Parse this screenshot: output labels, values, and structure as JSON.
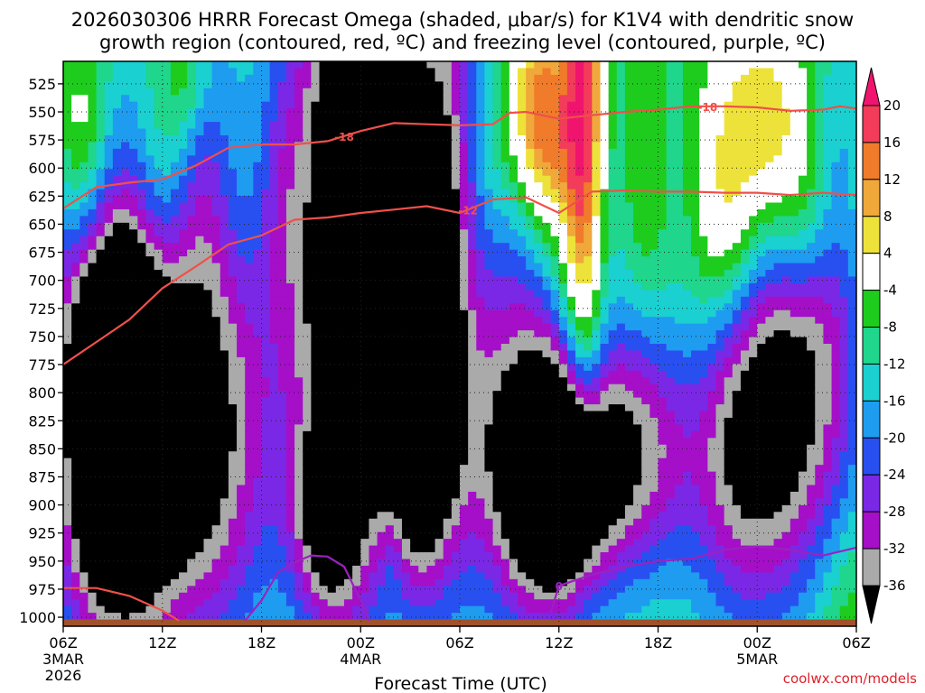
{
  "chart_data": {
    "type": "heatmap",
    "title_line1": "2026030306 HRRR Forecast Omega (shaded, μbar/s) for K1V4 with dendritic snow",
    "title_line2": "growth region (contoured, red, ºC) and freezing level (contoured, purple, ºC)",
    "xlabel": "Forecast Time (UTC)",
    "credit": "coolwx.com/models",
    "x_range_hours": [
      0,
      48
    ],
    "x_ticks": [
      {
        "h": 0,
        "label": "06Z",
        "sub1": "3MAR",
        "sub2": "2026"
      },
      {
        "h": 6,
        "label": "12Z",
        "sub1": "",
        "sub2": ""
      },
      {
        "h": 12,
        "label": "18Z",
        "sub1": "",
        "sub2": ""
      },
      {
        "h": 18,
        "label": "00Z",
        "sub1": "4MAR",
        "sub2": ""
      },
      {
        "h": 24,
        "label": "06Z",
        "sub1": "",
        "sub2": ""
      },
      {
        "h": 30,
        "label": "12Z",
        "sub1": "",
        "sub2": ""
      },
      {
        "h": 36,
        "label": "18Z",
        "sub1": "",
        "sub2": ""
      },
      {
        "h": 42,
        "label": "00Z",
        "sub1": "5MAR",
        "sub2": ""
      },
      {
        "h": 48,
        "label": "06Z",
        "sub1": "",
        "sub2": ""
      }
    ],
    "y_range_hpa": [
      1008,
      505
    ],
    "y_ticks": [
      525,
      550,
      575,
      600,
      625,
      650,
      675,
      700,
      725,
      750,
      775,
      800,
      825,
      850,
      875,
      900,
      925,
      950,
      975,
      1000
    ],
    "colorbar": {
      "levels": [
        {
          "lo": 16,
          "hi": 20,
          "color": "#f23c5a"
        },
        {
          "lo": 12,
          "hi": 16,
          "color": "#f07b2a"
        },
        {
          "lo": 8,
          "hi": 12,
          "color": "#f0a83a"
        },
        {
          "lo": 4,
          "hi": 8,
          "color": "#ede23a"
        },
        {
          "lo": -4,
          "hi": 4,
          "color": "#ffffff"
        },
        {
          "lo": -8,
          "hi": -4,
          "color": "#1ecc1e"
        },
        {
          "lo": -12,
          "hi": -8,
          "color": "#1fd68c"
        },
        {
          "lo": -16,
          "hi": -12,
          "color": "#1ad0d0"
        },
        {
          "lo": -20,
          "hi": -16,
          "color": "#1e9cf0"
        },
        {
          "lo": -24,
          "hi": -20,
          "color": "#2850f0"
        },
        {
          "lo": -28,
          "hi": -24,
          "color": "#7a28e6"
        },
        {
          "lo": -32,
          "hi": -28,
          "color": "#a50fc8"
        },
        {
          "lo": -36,
          "hi": -32,
          "color": "#aaaaaa"
        }
      ],
      "top_arrow_color": "#f0146e",
      "bottom_arrow_color": "#000000",
      "labels": [
        20,
        16,
        12,
        8,
        4,
        -4,
        -8,
        -12,
        -16,
        -20,
        -24,
        -28,
        -32,
        -36
      ]
    },
    "omega_field": {
      "times": [
        0,
        1,
        2,
        3,
        4,
        5,
        6,
        7,
        8,
        9,
        10,
        11,
        12,
        13,
        14,
        15,
        16,
        17,
        18,
        19,
        20,
        21,
        22,
        23,
        24,
        25,
        26,
        27,
        28,
        29,
        30,
        31,
        32,
        33,
        34,
        35,
        36,
        37,
        38,
        39,
        40,
        41,
        42,
        43,
        44,
        45,
        46,
        47,
        48
      ],
      "levels": [
        510,
        525,
        550,
        575,
        600,
        625,
        650,
        675,
        700,
        725,
        750,
        775,
        800,
        825,
        850,
        875,
        900,
        925,
        950,
        975,
        1000
      ],
      "centers": [
        {
          "t": 3,
          "p": 890,
          "amp": -36,
          "st": 2.5,
          "sp": 110
        },
        {
          "t": 2,
          "p": 720,
          "amp": -10,
          "st": 2.5,
          "sp": 140
        },
        {
          "t": 8,
          "p": 870,
          "amp": -22,
          "st": 3,
          "sp": 120
        },
        {
          "t": 10,
          "p": 700,
          "amp": -14,
          "st": 3,
          "sp": 180
        },
        {
          "t": 15.5,
          "p": 650,
          "amp": -16,
          "st": 1.8,
          "sp": 220
        },
        {
          "t": 16,
          "p": 920,
          "amp": -20,
          "st": 1.5,
          "sp": 60
        },
        {
          "t": 17.5,
          "p": 650,
          "amp": -26,
          "st": 1.8,
          "sp": 230
        },
        {
          "t": 21.5,
          "p": 620,
          "amp": -30,
          "st": 2.8,
          "sp": 200
        },
        {
          "t": 21.5,
          "p": 840,
          "amp": -32,
          "st": 1.6,
          "sp": 90
        },
        {
          "t": 30,
          "p": 880,
          "amp": -44,
          "st": 2.2,
          "sp": 70
        },
        {
          "t": 28,
          "p": 830,
          "amp": -20,
          "st": 3.2,
          "sp": 140
        },
        {
          "t": 35,
          "p": 850,
          "amp": -22,
          "st": 2.2,
          "sp": 80
        },
        {
          "t": 41,
          "p": 850,
          "amp": -26,
          "st": 2.5,
          "sp": 110
        },
        {
          "t": 45,
          "p": 760,
          "amp": -26,
          "st": 2.5,
          "sp": 140
        },
        {
          "t": 3.5,
          "p": 740,
          "amp": -24,
          "st": 2.5,
          "sp": 70
        },
        {
          "t": 29,
          "p": 560,
          "amp": 22,
          "st": 1.2,
          "sp": 70
        },
        {
          "t": 31.5,
          "p": 580,
          "amp": 30,
          "st": 0.9,
          "sp": 180
        },
        {
          "t": 27.5,
          "p": 560,
          "amp": 10,
          "st": 1.4,
          "sp": 80
        },
        {
          "t": 42.5,
          "p": 560,
          "amp": 22,
          "st": 1.8,
          "sp": 70
        },
        {
          "t": 41.5,
          "p": 660,
          "amp": 10,
          "st": 2.5,
          "sp": 70
        },
        {
          "t": 46,
          "p": 650,
          "amp": 8,
          "st": 1.8,
          "sp": 60
        },
        {
          "t": 7.5,
          "p": 525,
          "amp": 8,
          "st": 1.0,
          "sp": 40
        },
        {
          "t": 1,
          "p": 560,
          "amp": 8,
          "st": 1.2,
          "sp": 60
        },
        {
          "t": 38,
          "p": 700,
          "amp": 4,
          "st": 1.6,
          "sp": 160
        },
        {
          "t": 20,
          "p": 940,
          "amp": 6,
          "st": 0.6,
          "sp": 40
        },
        {
          "t": 47.5,
          "p": 1000,
          "amp": 6,
          "st": 1.5,
          "sp": 60
        }
      ],
      "base_value": -9
    },
    "contours": {
      "dgz_minus18": {
        "label": "-18",
        "color": "#f0504a",
        "points": [
          [
            0,
            636
          ],
          [
            2,
            617
          ],
          [
            4,
            613
          ],
          [
            6,
            610
          ],
          [
            8,
            598
          ],
          [
            10,
            582
          ],
          [
            12,
            579
          ],
          [
            14,
            579
          ],
          [
            16,
            576
          ],
          [
            18,
            567
          ],
          [
            20,
            560
          ],
          [
            22,
            561
          ],
          [
            24,
            562
          ],
          [
            26,
            561
          ],
          [
            27,
            551
          ],
          [
            28,
            550
          ],
          [
            30,
            556
          ],
          [
            32,
            553
          ],
          [
            34,
            550
          ],
          [
            36,
            548
          ],
          [
            38,
            545
          ],
          [
            40,
            545
          ],
          [
            42,
            546
          ],
          [
            44,
            549
          ],
          [
            46,
            548
          ],
          [
            47,
            545
          ],
          [
            48,
            547
          ]
        ],
        "label_at": 17,
        "label2_at": 39
      },
      "dgz_minus12": {
        "label": "-12",
        "color": "#f0504a",
        "points": [
          [
            0,
            775
          ],
          [
            2,
            755
          ],
          [
            4,
            735
          ],
          [
            6,
            707
          ],
          [
            8,
            688
          ],
          [
            10,
            668
          ],
          [
            12,
            660
          ],
          [
            14,
            646
          ],
          [
            16,
            644
          ],
          [
            18,
            640
          ],
          [
            20,
            637
          ],
          [
            22,
            634
          ],
          [
            24,
            640
          ],
          [
            26,
            628
          ],
          [
            28,
            626
          ],
          [
            30,
            640
          ],
          [
            32,
            621
          ],
          [
            34,
            620
          ],
          [
            36,
            621
          ],
          [
            38,
            621
          ],
          [
            40,
            622
          ],
          [
            42,
            622
          ],
          [
            44,
            624
          ],
          [
            46,
            622
          ],
          [
            48,
            624
          ]
        ],
        "label_at": 24.5
      },
      "dgz_lower": {
        "color": "#f0504a",
        "points": [
          [
            0,
            974
          ],
          [
            2,
            974
          ],
          [
            4,
            981
          ],
          [
            6,
            994
          ],
          [
            7,
            1003
          ]
        ]
      },
      "freezing_level": {
        "label": "0",
        "color": "#9a22c0",
        "points": [
          [
            11,
            1003
          ],
          [
            12,
            985
          ],
          [
            13,
            960
          ],
          [
            14,
            951
          ],
          [
            15,
            945
          ],
          [
            16,
            946
          ],
          [
            17,
            955
          ],
          [
            18,
            985
          ],
          [
            18.5,
            1003
          ]
        ],
        "label_at": 30
      },
      "freezing_level_2": {
        "color": "#9a22c0",
        "points": [
          [
            29.5,
            996
          ],
          [
            30,
            972
          ],
          [
            31,
            967
          ],
          [
            32,
            962
          ],
          [
            34,
            955
          ],
          [
            36,
            950
          ],
          [
            38,
            948
          ],
          [
            40,
            940
          ],
          [
            42,
            937
          ],
          [
            44,
            940
          ],
          [
            46,
            945
          ],
          [
            48,
            938
          ]
        ]
      }
    },
    "ground_color": "#a0522d"
  }
}
